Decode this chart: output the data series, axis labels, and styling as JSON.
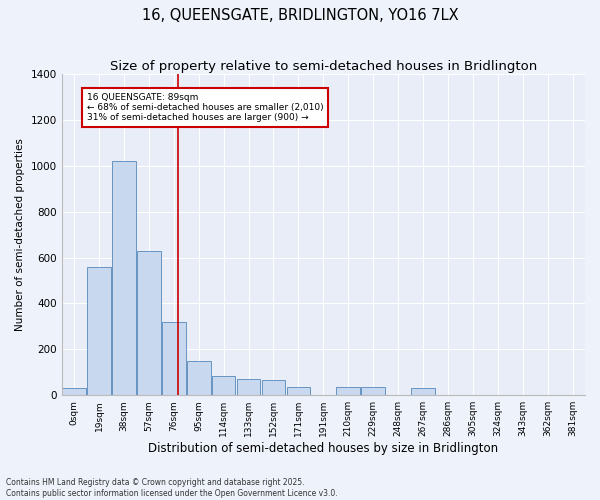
{
  "title1": "16, QUEENSGATE, BRIDLINGTON, YO16 7LX",
  "title2": "Size of property relative to semi-detached houses in Bridlington",
  "xlabel": "Distribution of semi-detached houses by size in Bridlington",
  "ylabel": "Number of semi-detached properties",
  "categories": [
    "0sqm",
    "19sqm",
    "38sqm",
    "57sqm",
    "76sqm",
    "95sqm",
    "114sqm",
    "133sqm",
    "152sqm",
    "171sqm",
    "191sqm",
    "210sqm",
    "229sqm",
    "248sqm",
    "267sqm",
    "286sqm",
    "305sqm",
    "324sqm",
    "343sqm",
    "362sqm",
    "381sqm"
  ],
  "values": [
    30,
    560,
    1020,
    630,
    320,
    150,
    85,
    70,
    65,
    35,
    0,
    35,
    35,
    0,
    30,
    0,
    0,
    0,
    0,
    0,
    0
  ],
  "bar_color": "#c8d8ee",
  "bar_edge_color": "#5588bb",
  "vline_color": "#cc0000",
  "annotation_text": "16 QUEENSGATE: 89sqm\n← 68% of semi-detached houses are smaller (2,010)\n31% of semi-detached houses are larger (900) →",
  "annotation_box_color": "#cc0000",
  "ylim": [
    0,
    1400
  ],
  "yticks": [
    0,
    200,
    400,
    600,
    800,
    1000,
    1200,
    1400
  ],
  "bg_color": "#e8edf8",
  "grid_color": "#ffffff",
  "footer": "Contains HM Land Registry data © Crown copyright and database right 2025.\nContains public sector information licensed under the Open Government Licence v3.0.",
  "fig_bg_color": "#eef2fb"
}
